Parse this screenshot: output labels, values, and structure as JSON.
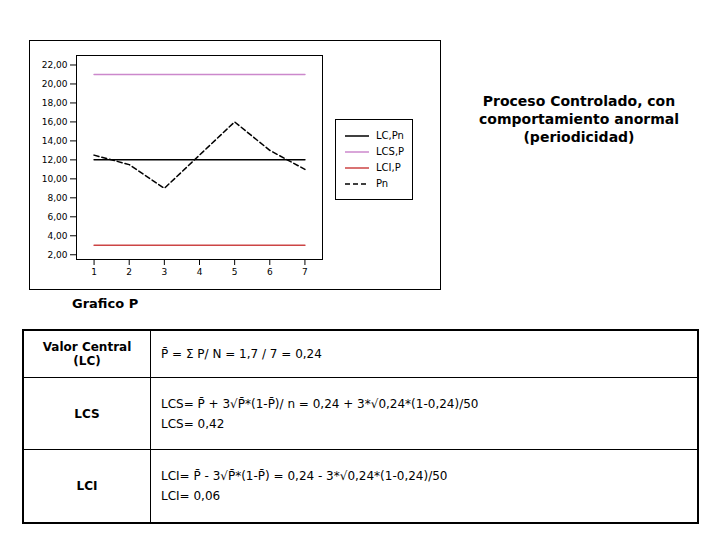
{
  "chart_data": {
    "type": "line",
    "title": "Proceso Controlado, con\ncomportamiento anormal\n(periodicidad)",
    "x": [
      1,
      2,
      3,
      4,
      5,
      6,
      7
    ],
    "series": [
      {
        "name": "LC,Pn",
        "color": "#000000",
        "line_style": "solid",
        "values": [
          12.0,
          12.0,
          12.0,
          12.0,
          12.0,
          12.0,
          12.0
        ]
      },
      {
        "name": "LCS,P",
        "color": "#cc88cc",
        "line_style": "solid",
        "values": [
          21.0,
          21.0,
          21.0,
          21.0,
          21.0,
          21.0,
          21.0
        ]
      },
      {
        "name": "LCI,P",
        "color": "#cc4444",
        "line_style": "solid",
        "values": [
          3.0,
          3.0,
          3.0,
          3.0,
          3.0,
          3.0,
          3.0
        ]
      },
      {
        "name": "Pn",
        "color": "#000000",
        "line_style": "dashed",
        "values": [
          12.5,
          11.5,
          9.0,
          12.5,
          16.0,
          13.0,
          11.0
        ]
      }
    ],
    "xlim": [
      0.5,
      7.5
    ],
    "xticks": [
      1,
      2,
      3,
      4,
      5,
      6,
      7
    ],
    "ylim": [
      1.5,
      23.0
    ],
    "yticks": [
      {
        "value": 2.0,
        "label": "2,00"
      },
      {
        "value": 4.0,
        "label": "4,00"
      },
      {
        "value": 6.0,
        "label": "6,00"
      },
      {
        "value": 8.0,
        "label": "8,00"
      },
      {
        "value": 10.0,
        "label": "10,00"
      },
      {
        "value": 12.0,
        "label": "12,00"
      },
      {
        "value": 14.0,
        "label": "14,00"
      },
      {
        "value": 16.0,
        "label": "16,00"
      },
      {
        "value": 18.0,
        "label": "18,00"
      },
      {
        "value": 20.0,
        "label": "20,00"
      },
      {
        "value": 22.0,
        "label": "22,00"
      }
    ],
    "grid": false,
    "legend": "right",
    "annotations": [
      "Grafico P",
      "Valor Central\n(LC)",
      "P̄ = Σ P/ N = 1,7 / 7 = 0,24",
      "LCS",
      "LCS= P̄ + 3√P̄*(1-P̄)/ n = 0,24 + 3*√0,24*(1-0,24)/50",
      "LCS= 0,42",
      "LCI",
      "LCI= P̄ - 3√P̄*(1-P̄) = 0,24 - 3*√0,24*(1-0,24)/50",
      "LCI= 0,06"
    ]
  }
}
